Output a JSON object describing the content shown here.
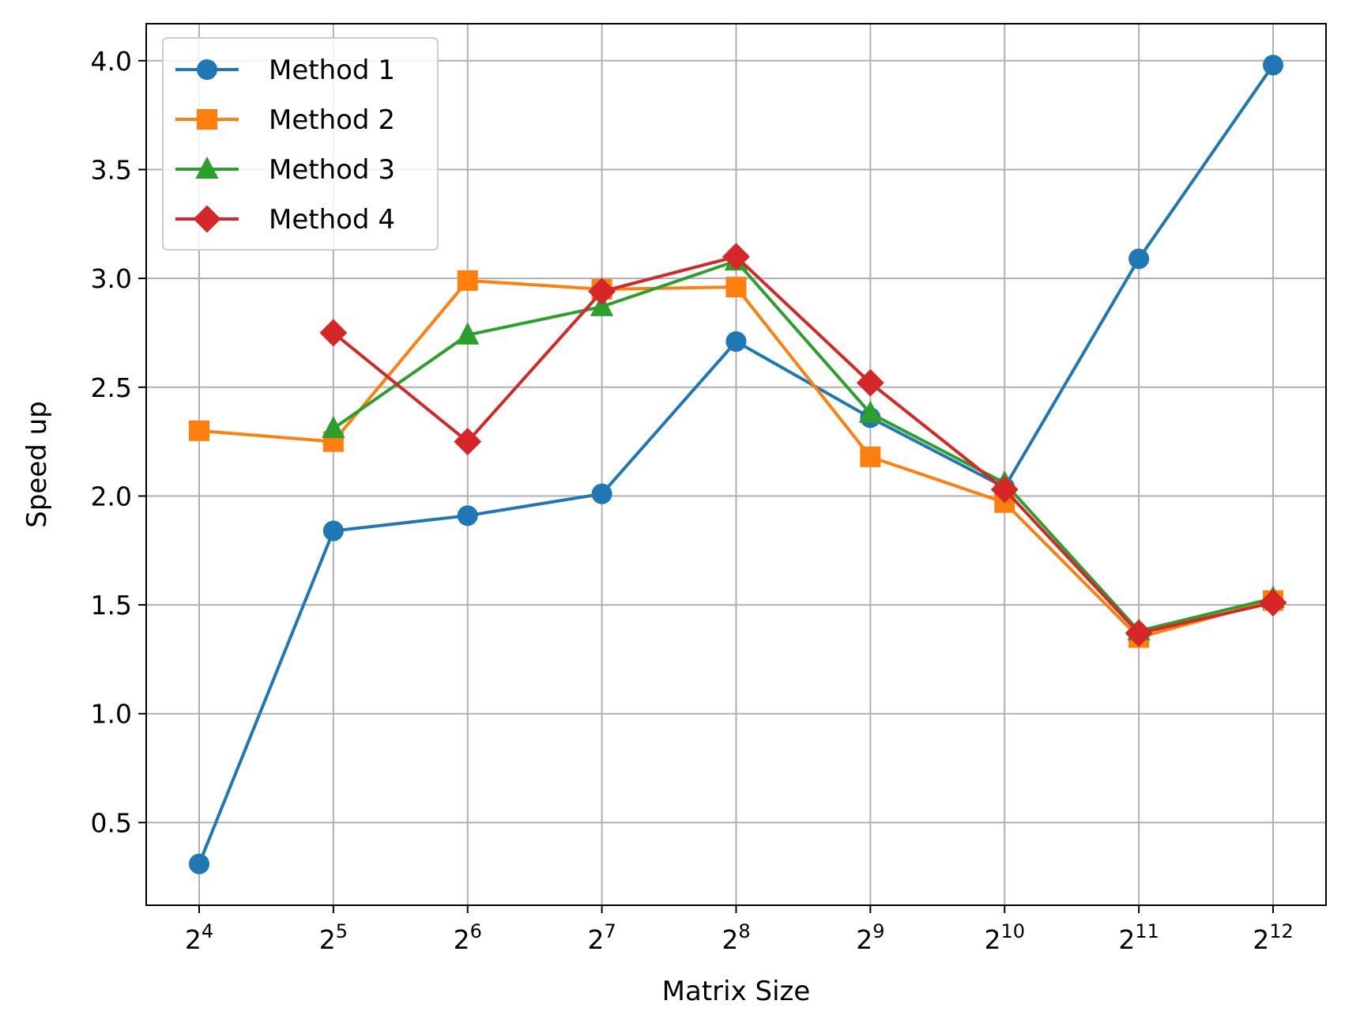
{
  "chart_data": {
    "type": "line",
    "xlabel": "Matrix Size",
    "ylabel": "Speed up",
    "x_scale": "log2",
    "x": [
      16,
      32,
      64,
      128,
      256,
      512,
      1024,
      2048,
      4096
    ],
    "x_tick_labels": [
      {
        "base": "2",
        "exp": "4"
      },
      {
        "base": "2",
        "exp": "5"
      },
      {
        "base": "2",
        "exp": "6"
      },
      {
        "base": "2",
        "exp": "7"
      },
      {
        "base": "2",
        "exp": "8"
      },
      {
        "base": "2",
        "exp": "9"
      },
      {
        "base": "2",
        "exp": "10"
      },
      {
        "base": "2",
        "exp": "11"
      },
      {
        "base": "2",
        "exp": "12"
      }
    ],
    "y_ticks": [
      "0.5",
      "1.0",
      "1.5",
      "2.0",
      "2.5",
      "3.0",
      "3.5",
      "4.0"
    ],
    "ylim": [
      0.12,
      4.17
    ],
    "grid": true,
    "legend_position": "top-left",
    "series": [
      {
        "name": "Method 1",
        "color": "#1f77b4",
        "marker": "circle",
        "values": [
          0.31,
          1.84,
          1.91,
          2.01,
          2.71,
          2.36,
          2.04,
          3.09,
          3.98
        ]
      },
      {
        "name": "Method 2",
        "color": "#ff7f0e",
        "marker": "square",
        "values": [
          2.3,
          2.25,
          2.99,
          2.95,
          2.96,
          2.18,
          1.97,
          1.35,
          1.52
        ]
      },
      {
        "name": "Method 3",
        "color": "#2ca02c",
        "marker": "triangle",
        "values": [
          null,
          2.31,
          2.74,
          2.87,
          3.08,
          2.38,
          2.06,
          1.38,
          1.53
        ]
      },
      {
        "name": "Method 4",
        "color": "#d62728",
        "marker": "diamond",
        "values": [
          null,
          2.75,
          2.25,
          2.94,
          3.1,
          2.52,
          2.03,
          1.37,
          1.51
        ]
      }
    ]
  }
}
